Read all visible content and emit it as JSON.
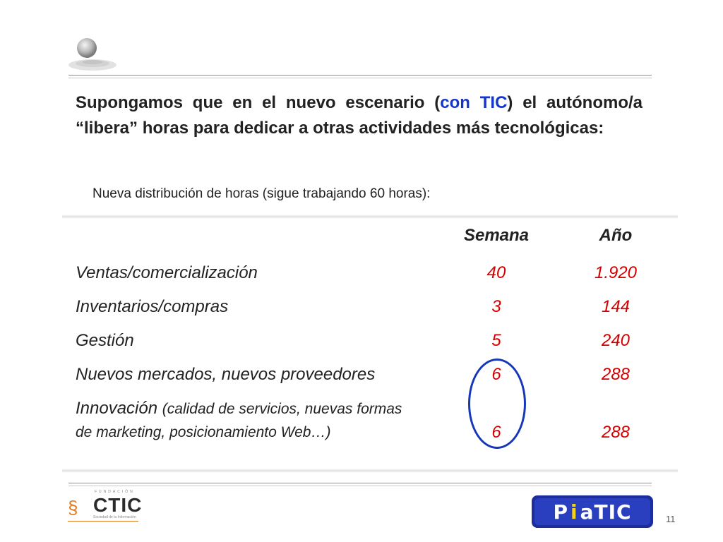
{
  "intro": {
    "part1": "Supongamos que en el nuevo escenario (",
    "highlight1": "con",
    "space": " ",
    "highlight2": "TIC",
    "part2": ") el autónomo/a “libera” horas para dedicar a otras actividades más tecnológicas:"
  },
  "subtitle": "Nueva distribución de horas (sigue trabajando 60 horas):",
  "table": {
    "headers": [
      "",
      "Semana",
      "Año"
    ],
    "rows": [
      {
        "label": "Ventas/comercialización",
        "week": "40",
        "year": "1.920"
      },
      {
        "label": "Inventarios/compras",
        "week": "3",
        "year": "144"
      },
      {
        "label": "Gestión",
        "week": "5",
        "year": "240"
      },
      {
        "label": "Nuevos mercados, nuevos proveedores",
        "week": "6",
        "year": "288"
      },
      {
        "label_main": "Innovación",
        "label_detail": "(calidad de servicios, nuevas formas de marketing, posicionamiento Web…)",
        "week": "6",
        "year": "288"
      }
    ]
  },
  "footer": {
    "ctic_foundation": "FUNDACIÓN",
    "ctic_brand": "CTIC",
    "ctic_tagline": "Sociedad de la Información",
    "piatic_p": "P",
    "piatic_i": "i",
    "piatic_rest": "aTIC",
    "page_number": "11"
  },
  "colors": {
    "accent_blue": "#1536c8",
    "value_red": "#d40000",
    "circle": "#1638b7"
  }
}
